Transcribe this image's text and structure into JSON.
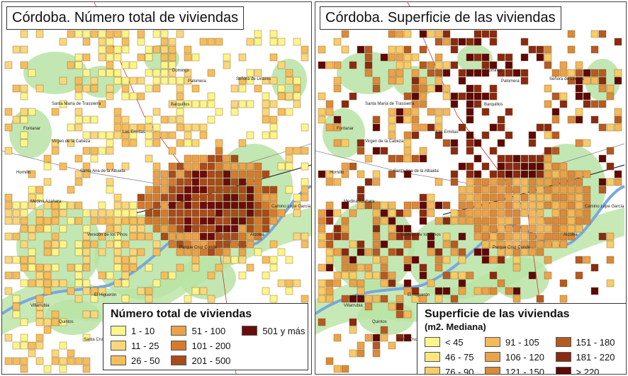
{
  "maps": [
    {
      "title": "Córdoba. Número total de viviendas",
      "legend": {
        "title": "Número total de viviendas",
        "subtitle": "",
        "classes": [
          {
            "label": "1 - 10",
            "color": "#fdf58a"
          },
          {
            "label": "11 - 25",
            "color": "#fad77a"
          },
          {
            "label": "26 - 50",
            "color": "#f6bd5c"
          },
          {
            "label": "51 - 100",
            "color": "#eba24a"
          },
          {
            "label": "101 - 200",
            "color": "#d77a2e"
          },
          {
            "label": "201 - 500",
            "color": "#a84b1a"
          },
          {
            "label": "501 y más",
            "color": "#6b0c0c"
          }
        ]
      }
    },
    {
      "title": "Córdoba. Superficie de las viviendas",
      "legend": {
        "title": "Superficie de las viviendas",
        "subtitle": "(m2. Mediana)",
        "classes": [
          {
            "label": "< 45",
            "color": "#fdf58a"
          },
          {
            "label": "46 - 75",
            "color": "#fce57c"
          },
          {
            "label": "76 - 90",
            "color": "#f8cc66"
          },
          {
            "label": "91 - 105",
            "color": "#f4b95a"
          },
          {
            "label": "106 - 120",
            "color": "#eba24a"
          },
          {
            "label": "121 - 150",
            "color": "#d98a3a"
          },
          {
            "label": "151 - 180",
            "color": "#b55a22"
          },
          {
            "label": "181 - 220",
            "color": "#8a2a12"
          },
          {
            "label": "> 220",
            "color": "#5e0808"
          }
        ]
      }
    }
  ],
  "places": [
    "Domingo",
    "Palomera",
    "Barquillos",
    "Señora de Linares",
    "Las Ermitas",
    "Virgen de la Cabeza",
    "Hornillo",
    "Medina Azahara",
    "Santa Ana de la Albaida",
    "Camino Lope García",
    "Parque Cruz Conde",
    "Alcolea",
    "Villarrubia",
    "El Higuerón",
    "Quintos",
    "Santa Cruz",
    "Santa María de Trassierra",
    "Veredón de los Pinos",
    "Fontanar"
  ]
}
